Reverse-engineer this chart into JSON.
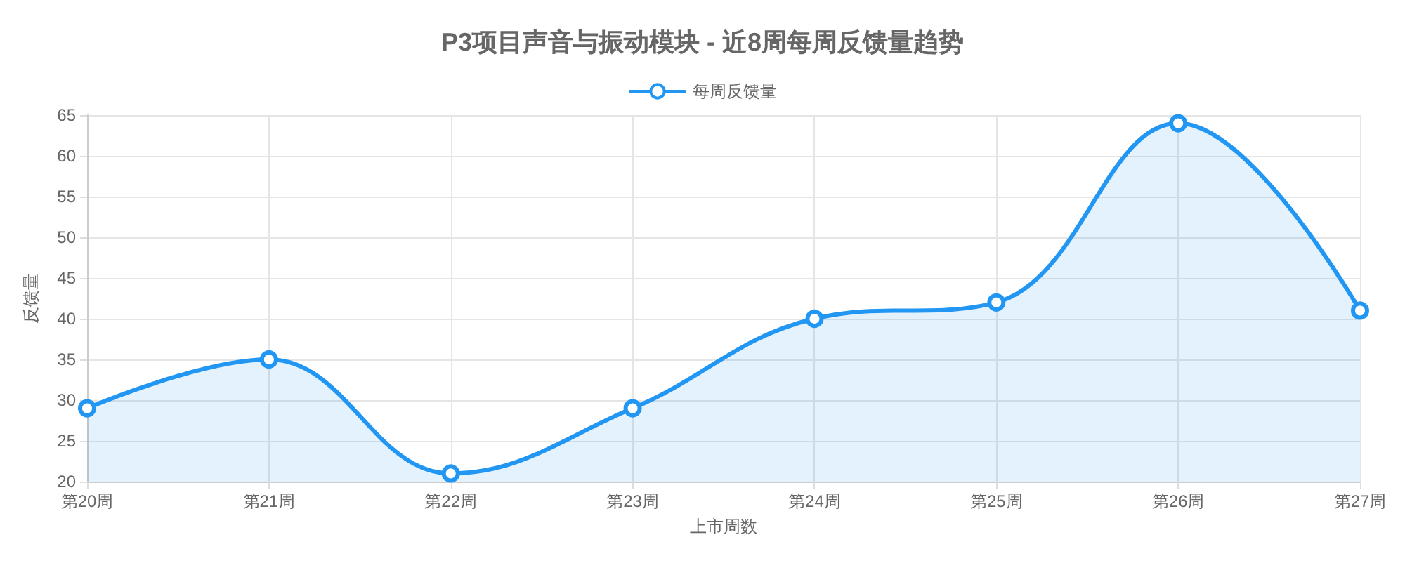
{
  "chart_data": {
    "type": "area",
    "title": "P3项目声音与振动模块 - 近8周每周反馈量趋势",
    "xlabel": "上市周数",
    "ylabel": "反馈量",
    "categories": [
      "第20周",
      "第21周",
      "第22周",
      "第23周",
      "第24周",
      "第25周",
      "第26周",
      "第27周"
    ],
    "series": [
      {
        "name": "每周反馈量",
        "color": "#2196f3",
        "values": [
          29,
          35,
          21,
          29,
          40,
          42,
          64,
          41
        ]
      }
    ],
    "ylim": [
      20,
      65
    ],
    "yticks": [
      20,
      25,
      30,
      35,
      40,
      45,
      50,
      55,
      60,
      65
    ],
    "grid": true,
    "legend": "top",
    "marker": "circle",
    "line_style": "solid"
  }
}
